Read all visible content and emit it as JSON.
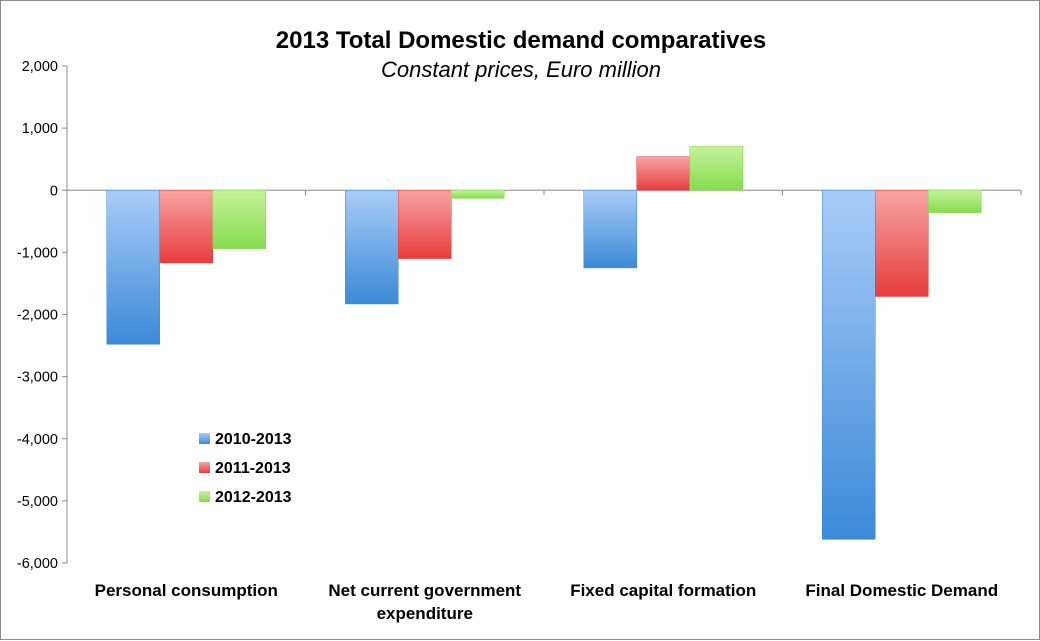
{
  "chart_data": {
    "type": "bar",
    "title": "2013 Total Domestic demand comparatives",
    "subtitle": "Constant prices, Euro million",
    "xlabel": "",
    "ylabel": "",
    "ylim": [
      -6000,
      2000
    ],
    "y_ticks": [
      2000,
      1000,
      0,
      -1000,
      -2000,
      -3000,
      -4000,
      -5000,
      -6000
    ],
    "y_tick_labels": [
      "2,000",
      "1,000",
      "0",
      "-1,000",
      "-2,000",
      "-3,000",
      "-4,000",
      "-5,000",
      "-6,000"
    ],
    "categories": [
      [
        "Personal consumption"
      ],
      [
        "Net current government",
        "expenditure"
      ],
      [
        "Fixed capital formation"
      ],
      [
        "Final Domestic Demand"
      ]
    ],
    "series": [
      {
        "name": "2010-2013",
        "color_top": "#a9ccf7",
        "color_bottom": "#3b8ad8",
        "values": [
          -2480,
          -1830,
          -1250,
          -5620
        ]
      },
      {
        "name": "2011-2013",
        "color_top": "#f7a4a4",
        "color_bottom": "#e83c3c",
        "values": [
          -1170,
          -1100,
          540,
          -1710
        ]
      },
      {
        "name": "2012-2013",
        "color_top": "#c6f29a",
        "color_bottom": "#85dc4e",
        "values": [
          -940,
          -130,
          710,
          -360
        ]
      }
    ],
    "legend_position": "lower-left",
    "grid": false
  }
}
